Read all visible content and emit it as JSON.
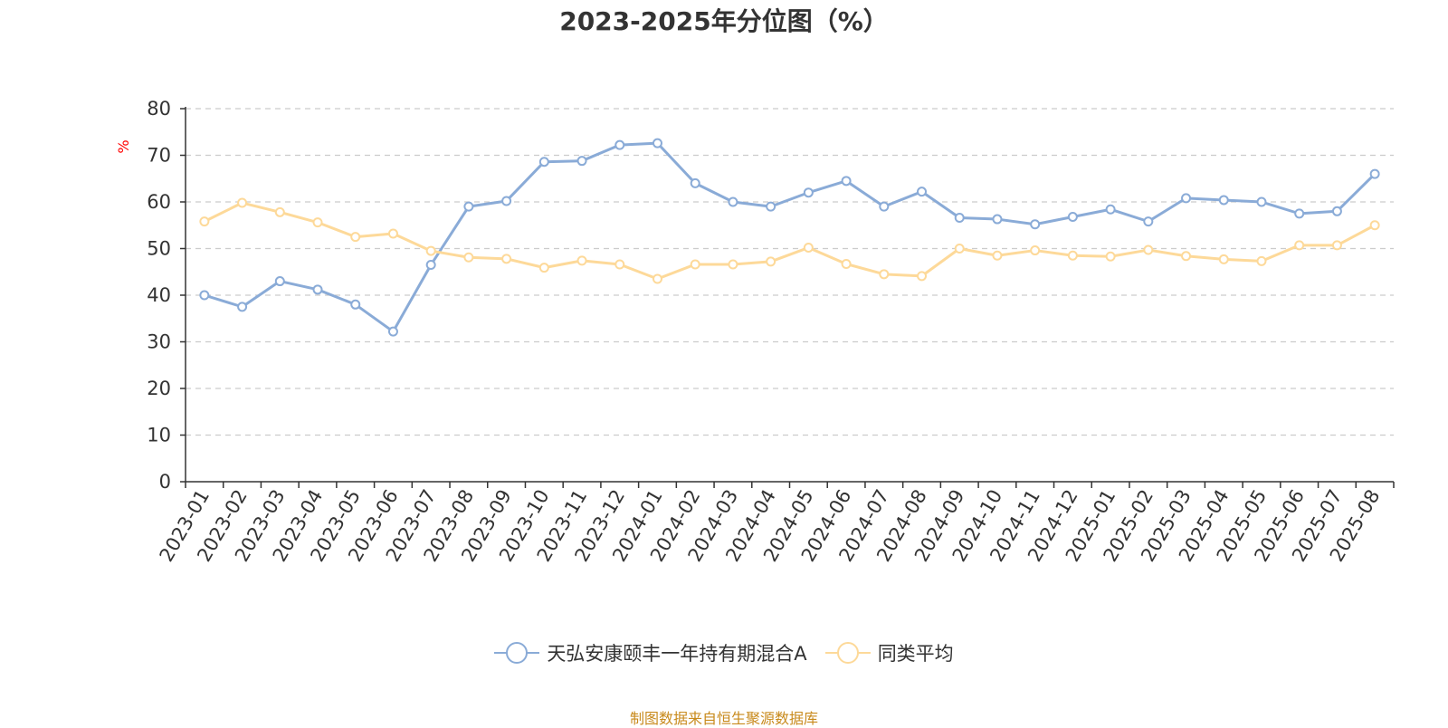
{
  "chart_data": {
    "type": "line",
    "title": "2023-2025年分位图（%）",
    "ylabel": "%",
    "ylim": [
      0,
      80
    ],
    "yticks": [
      0,
      10,
      20,
      30,
      40,
      50,
      60,
      70,
      80
    ],
    "grid": true,
    "legend_position": "bottom-center",
    "categories": [
      "2023-01",
      "2023-02",
      "2023-03",
      "2023-04",
      "2023-05",
      "2023-06",
      "2023-07",
      "2023-08",
      "2023-09",
      "2023-10",
      "2023-11",
      "2023-12",
      "2024-01",
      "2024-02",
      "2024-03",
      "2024-04",
      "2024-05",
      "2024-06",
      "2024-07",
      "2024-08",
      "2024-09",
      "2024-10",
      "2024-11",
      "2024-12",
      "2025-01",
      "2025-02",
      "2025-03",
      "2025-04",
      "2025-05",
      "2025-06",
      "2025-07",
      "2025-08"
    ],
    "series": [
      {
        "name": "天弘安康颐丰一年持有期混合A",
        "color": "#8aabd7",
        "values": [
          40.0,
          37.5,
          43.0,
          41.2,
          38.0,
          32.2,
          46.5,
          59.0,
          60.2,
          68.6,
          68.8,
          72.2,
          72.6,
          64.0,
          60.0,
          59.0,
          62.0,
          64.5,
          59.0,
          62.2,
          56.6,
          56.3,
          55.2,
          56.8,
          58.4,
          55.8,
          60.8,
          60.4,
          60.0,
          57.5,
          58.0,
          66.0
        ]
      },
      {
        "name": "同类平均",
        "color": "#fdd999",
        "values": [
          55.8,
          59.8,
          57.8,
          55.6,
          52.5,
          53.2,
          49.5,
          48.1,
          47.8,
          45.9,
          47.4,
          46.6,
          43.5,
          46.6,
          46.6,
          47.2,
          50.2,
          46.7,
          44.5,
          44.1,
          50.0,
          48.5,
          49.6,
          48.5,
          48.3,
          49.7,
          48.4,
          47.7,
          47.3,
          50.7,
          50.7,
          55.0
        ]
      }
    ]
  },
  "source_note": "制图数据来自恒生聚源数据库",
  "colors": {
    "grid": "#cccccc",
    "axis": "#333333",
    "unit": "#ff0000",
    "source": "#c88a1c",
    "point_fill": "#ffffff"
  }
}
